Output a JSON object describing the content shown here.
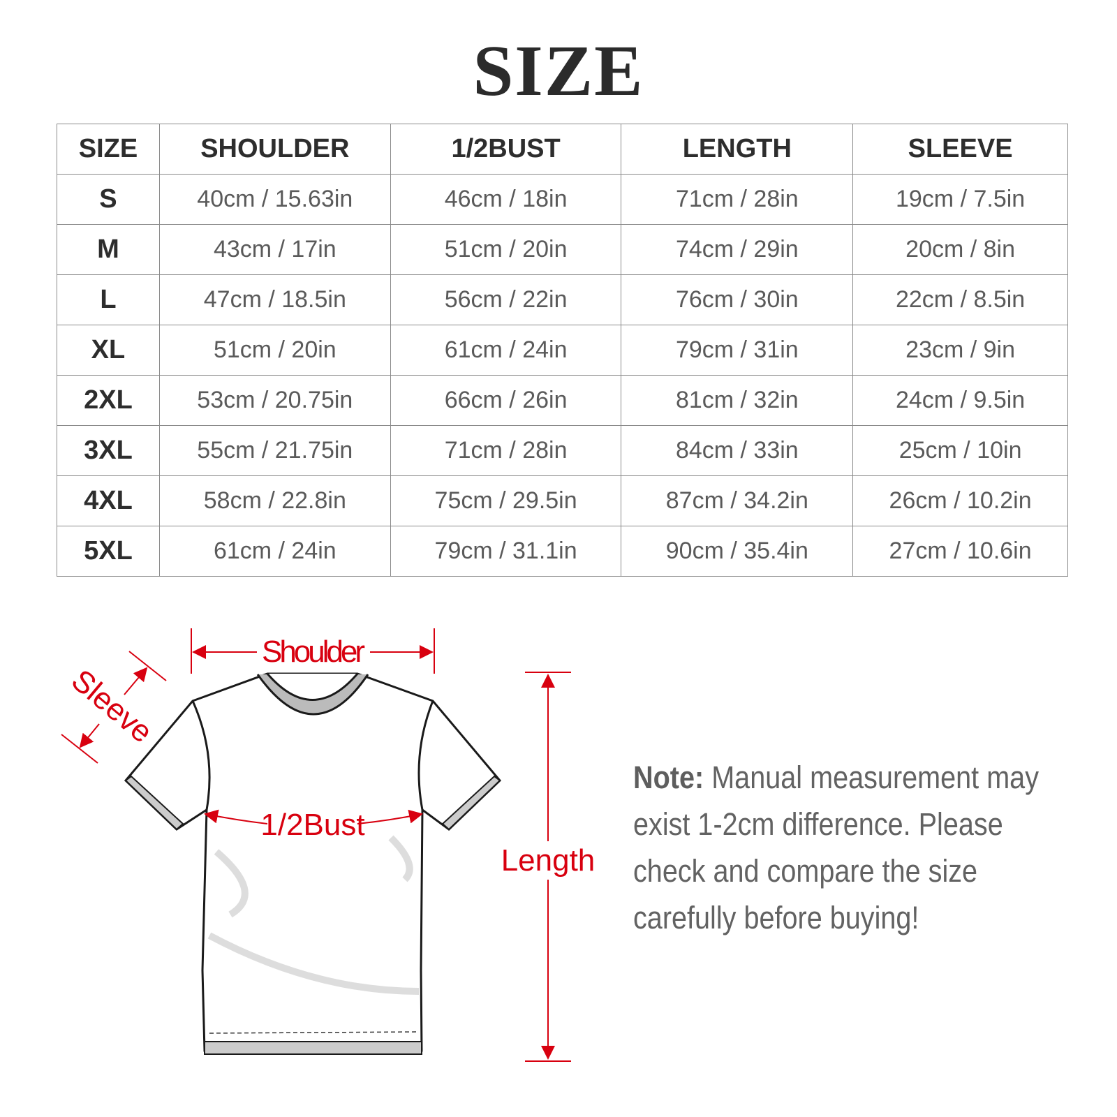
{
  "title": "SIZE",
  "table": {
    "headers": [
      "SIZE",
      "SHOULDER",
      "1/2BUST",
      "LENGTH",
      "SLEEVE"
    ],
    "rows": [
      [
        "S",
        "40cm / 15.63in",
        "46cm / 18in",
        "71cm / 28in",
        "19cm / 7.5in"
      ],
      [
        "M",
        "43cm / 17in",
        "51cm / 20in",
        "74cm / 29in",
        "20cm / 8in"
      ],
      [
        "L",
        "47cm / 18.5in",
        "56cm / 22in",
        "76cm / 30in",
        "22cm / 8.5in"
      ],
      [
        "XL",
        "51cm / 20in",
        "61cm / 24in",
        "79cm / 31in",
        "23cm / 9in"
      ],
      [
        "2XL",
        "53cm / 20.75in",
        "66cm / 26in",
        "81cm / 32in",
        "24cm / 9.5in"
      ],
      [
        "3XL",
        "55cm / 21.75in",
        "71cm / 28in",
        "84cm / 33in",
        "25cm / 10in"
      ],
      [
        "4XL",
        "58cm / 22.8in",
        "75cm / 29.5in",
        "87cm / 34.2in",
        "26cm / 10.2in"
      ],
      [
        "5XL",
        "61cm / 24in",
        "79cm / 31.1in",
        "90cm / 35.4in",
        "27cm / 10.6in"
      ]
    ]
  },
  "diagram": {
    "shoulder": "Shoulder",
    "sleeve": "Sleeve",
    "bust": "1/2Bust",
    "length": "Length",
    "accent_color": "#d8000f"
  },
  "note": {
    "label": "Note:",
    "text": "Manual measurement may exist 1-2cm difference. Please check and compare the size carefully before buying!"
  }
}
